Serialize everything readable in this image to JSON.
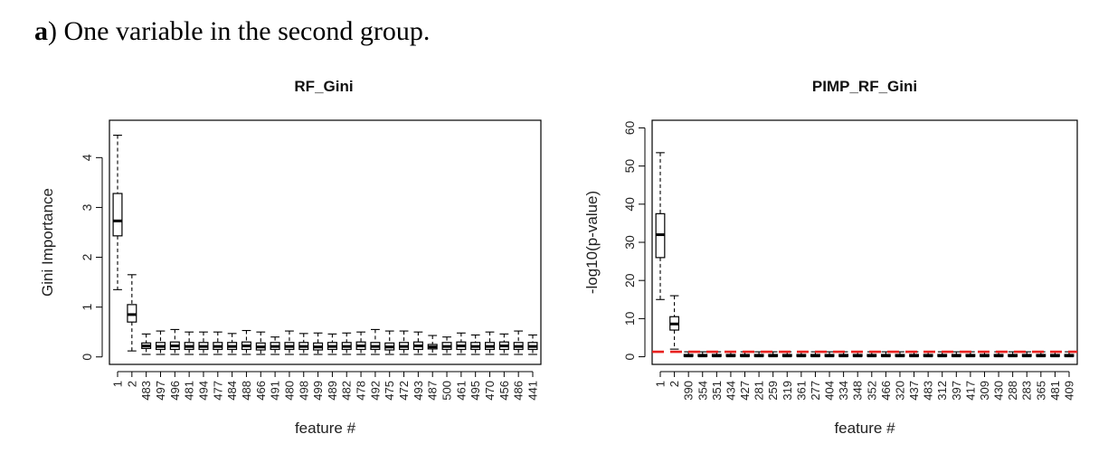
{
  "caption": {
    "letter": "a",
    "text": ") One variable in the second group."
  },
  "chart_data": [
    {
      "type": "boxplot",
      "title": "RF_Gini",
      "xlabel": "feature #",
      "ylabel": "Gini Importance",
      "ylim": [
        -0.15,
        4.75
      ],
      "yticks": [
        0,
        1,
        2,
        3,
        4
      ],
      "categories": [
        "1",
        "2",
        "483",
        "497",
        "496",
        "481",
        "494",
        "477",
        "484",
        "488",
        "466",
        "491",
        "480",
        "498",
        "499",
        "489",
        "482",
        "478",
        "492",
        "475",
        "472",
        "493",
        "487",
        "500",
        "461",
        "495",
        "470",
        "456",
        "486",
        "441"
      ],
      "boxes": [
        {
          "min": 1.35,
          "q1": 2.43,
          "median": 2.73,
          "q3": 3.28,
          "max": 4.45
        },
        {
          "min": 0.12,
          "q1": 0.7,
          "median": 0.85,
          "q3": 1.05,
          "max": 1.65
        },
        {
          "min": 0.05,
          "q1": 0.17,
          "median": 0.22,
          "q3": 0.28,
          "max": 0.46
        },
        {
          "min": 0.05,
          "q1": 0.15,
          "median": 0.21,
          "q3": 0.29,
          "max": 0.52
        },
        {
          "min": 0.05,
          "q1": 0.15,
          "median": 0.22,
          "q3": 0.3,
          "max": 0.55
        },
        {
          "min": 0.05,
          "q1": 0.15,
          "median": 0.21,
          "q3": 0.29,
          "max": 0.5
        },
        {
          "min": 0.05,
          "q1": 0.15,
          "median": 0.21,
          "q3": 0.29,
          "max": 0.5
        },
        {
          "min": 0.05,
          "q1": 0.15,
          "median": 0.21,
          "q3": 0.29,
          "max": 0.5
        },
        {
          "min": 0.05,
          "q1": 0.15,
          "median": 0.21,
          "q3": 0.29,
          "max": 0.47
        },
        {
          "min": 0.05,
          "q1": 0.15,
          "median": 0.22,
          "q3": 0.3,
          "max": 0.53
        },
        {
          "min": 0.05,
          "q1": 0.14,
          "median": 0.2,
          "q3": 0.28,
          "max": 0.5
        },
        {
          "min": 0.05,
          "q1": 0.15,
          "median": 0.21,
          "q3": 0.29,
          "max": 0.4
        },
        {
          "min": 0.05,
          "q1": 0.15,
          "median": 0.21,
          "q3": 0.29,
          "max": 0.52
        },
        {
          "min": 0.05,
          "q1": 0.15,
          "median": 0.21,
          "q3": 0.29,
          "max": 0.47
        },
        {
          "min": 0.05,
          "q1": 0.14,
          "median": 0.2,
          "q3": 0.28,
          "max": 0.48
        },
        {
          "min": 0.05,
          "q1": 0.15,
          "median": 0.21,
          "q3": 0.29,
          "max": 0.46
        },
        {
          "min": 0.05,
          "q1": 0.15,
          "median": 0.21,
          "q3": 0.29,
          "max": 0.48
        },
        {
          "min": 0.05,
          "q1": 0.15,
          "median": 0.22,
          "q3": 0.3,
          "max": 0.5
        },
        {
          "min": 0.05,
          "q1": 0.15,
          "median": 0.21,
          "q3": 0.29,
          "max": 0.55
        },
        {
          "min": 0.05,
          "q1": 0.14,
          "median": 0.2,
          "q3": 0.28,
          "max": 0.52
        },
        {
          "min": 0.05,
          "q1": 0.15,
          "median": 0.21,
          "q3": 0.29,
          "max": 0.52
        },
        {
          "min": 0.05,
          "q1": 0.15,
          "median": 0.22,
          "q3": 0.3,
          "max": 0.5
        },
        {
          "min": 0.05,
          "q1": 0.16,
          "median": 0.2,
          "q3": 0.25,
          "max": 0.43
        },
        {
          "min": 0.05,
          "q1": 0.15,
          "median": 0.21,
          "q3": 0.29,
          "max": 0.4
        },
        {
          "min": 0.05,
          "q1": 0.15,
          "median": 0.22,
          "q3": 0.3,
          "max": 0.48
        },
        {
          "min": 0.05,
          "q1": 0.15,
          "median": 0.21,
          "q3": 0.29,
          "max": 0.44
        },
        {
          "min": 0.05,
          "q1": 0.15,
          "median": 0.21,
          "q3": 0.29,
          "max": 0.5
        },
        {
          "min": 0.05,
          "q1": 0.15,
          "median": 0.22,
          "q3": 0.3,
          "max": 0.46
        },
        {
          "min": 0.05,
          "q1": 0.15,
          "median": 0.21,
          "q3": 0.29,
          "max": 0.52
        },
        {
          "min": 0.05,
          "q1": 0.15,
          "median": 0.21,
          "q3": 0.29,
          "max": 0.44
        }
      ]
    },
    {
      "type": "boxplot",
      "title": "PIMP_RF_Gini",
      "xlabel": "feature #",
      "ylabel": "-log10(p-value)",
      "ylim": [
        -2,
        62
      ],
      "yticks": [
        0,
        10,
        20,
        30,
        40,
        50,
        60
      ],
      "reference_line": {
        "y": 1.3,
        "color": "#e8211f",
        "style": "dashed"
      },
      "categories": [
        "1",
        "2",
        "390",
        "354",
        "351",
        "434",
        "427",
        "281",
        "259",
        "319",
        "361",
        "277",
        "404",
        "334",
        "348",
        "352",
        "466",
        "320",
        "437",
        "483",
        "312",
        "397",
        "417",
        "309",
        "430",
        "288",
        "283",
        "365",
        "481",
        "409"
      ],
      "boxes": [
        {
          "min": 15,
          "q1": 26,
          "median": 32,
          "q3": 37.5,
          "max": 53.5
        },
        {
          "min": 2,
          "q1": 7,
          "median": 8.6,
          "q3": 10.5,
          "max": 16
        },
        {
          "min": 0,
          "q1": 0.1,
          "median": 0.3,
          "q3": 0.6,
          "max": 1.3
        },
        {
          "min": 0,
          "q1": 0.1,
          "median": 0.3,
          "q3": 0.6,
          "max": 1.3
        },
        {
          "min": 0,
          "q1": 0.1,
          "median": 0.3,
          "q3": 0.6,
          "max": 1.3
        },
        {
          "min": 0,
          "q1": 0.1,
          "median": 0.3,
          "q3": 0.6,
          "max": 1.3
        },
        {
          "min": 0,
          "q1": 0.1,
          "median": 0.3,
          "q3": 0.6,
          "max": 1.3
        },
        {
          "min": 0,
          "q1": 0.1,
          "median": 0.3,
          "q3": 0.6,
          "max": 1.3
        },
        {
          "min": 0,
          "q1": 0.1,
          "median": 0.3,
          "q3": 0.6,
          "max": 1.3
        },
        {
          "min": 0,
          "q1": 0.1,
          "median": 0.3,
          "q3": 0.6,
          "max": 1.3
        },
        {
          "min": 0,
          "q1": 0.1,
          "median": 0.3,
          "q3": 0.6,
          "max": 1.3
        },
        {
          "min": 0,
          "q1": 0.1,
          "median": 0.3,
          "q3": 0.6,
          "max": 1.3
        },
        {
          "min": 0,
          "q1": 0.1,
          "median": 0.3,
          "q3": 0.6,
          "max": 1.3
        },
        {
          "min": 0,
          "q1": 0.1,
          "median": 0.3,
          "q3": 0.6,
          "max": 1.3
        },
        {
          "min": 0,
          "q1": 0.1,
          "median": 0.3,
          "q3": 0.6,
          "max": 1.3
        },
        {
          "min": 0,
          "q1": 0.1,
          "median": 0.3,
          "q3": 0.6,
          "max": 1.3
        },
        {
          "min": 0,
          "q1": 0.1,
          "median": 0.3,
          "q3": 0.6,
          "max": 1.3
        },
        {
          "min": 0,
          "q1": 0.1,
          "median": 0.3,
          "q3": 0.6,
          "max": 1.3
        },
        {
          "min": 0,
          "q1": 0.1,
          "median": 0.3,
          "q3": 0.6,
          "max": 1.3
        },
        {
          "min": 0,
          "q1": 0.1,
          "median": 0.3,
          "q3": 0.6,
          "max": 1.3
        },
        {
          "min": 0,
          "q1": 0.1,
          "median": 0.3,
          "q3": 0.6,
          "max": 1.3
        },
        {
          "min": 0,
          "q1": 0.1,
          "median": 0.3,
          "q3": 0.6,
          "max": 1.3
        },
        {
          "min": 0,
          "q1": 0.1,
          "median": 0.3,
          "q3": 0.6,
          "max": 1.3
        },
        {
          "min": 0,
          "q1": 0.1,
          "median": 0.3,
          "q3": 0.6,
          "max": 1.3
        },
        {
          "min": 0,
          "q1": 0.1,
          "median": 0.3,
          "q3": 0.6,
          "max": 1.3
        },
        {
          "min": 0,
          "q1": 0.1,
          "median": 0.3,
          "q3": 0.6,
          "max": 1.3
        },
        {
          "min": 0,
          "q1": 0.1,
          "median": 0.3,
          "q3": 0.6,
          "max": 1.3
        },
        {
          "min": 0,
          "q1": 0.1,
          "median": 0.3,
          "q3": 0.6,
          "max": 1.3
        },
        {
          "min": 0,
          "q1": 0.1,
          "median": 0.3,
          "q3": 0.6,
          "max": 1.3
        },
        {
          "min": 0,
          "q1": 0.1,
          "median": 0.3,
          "q3": 0.6,
          "max": 1.3
        }
      ]
    }
  ]
}
